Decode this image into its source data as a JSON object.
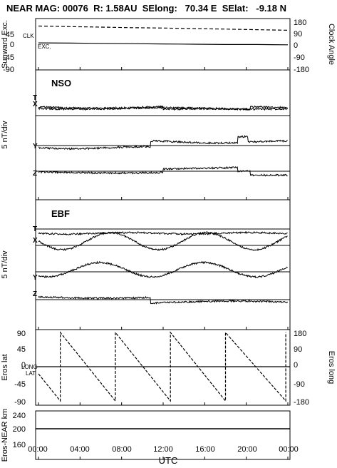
{
  "header": {
    "title": "NEAR MAG: 00076  R: 1.58AU  SElong:   70.34 E  SElat:   -9.18 N"
  },
  "xaxis": {
    "label": "UTC",
    "ticks": [
      "00:00",
      "04:00",
      "08:00",
      "12:00",
      "16:00",
      "20:00",
      "00:00"
    ]
  },
  "chart_data": [
    {
      "type": "line",
      "ylabel_left": "Sunward Exc.",
      "ylabel_right": "Clock Angle",
      "ylim": [
        -90,
        90
      ],
      "yticks_left": [
        "45",
        "0",
        "-45",
        "-90"
      ],
      "yticks_right": [
        "180",
        "90",
        "0",
        "-90",
        "-180"
      ],
      "annotations": [
        "CLK",
        "EXC."
      ],
      "x_hours": [
        0,
        3,
        6,
        9,
        12,
        15,
        18,
        21,
        24
      ],
      "series": [
        {
          "key": "clock",
          "style": "dashed",
          "values": [
            135,
            131,
            127,
            123,
            120,
            116,
            112,
            108,
            104
          ]
        },
        {
          "key": "exc",
          "style": "solid",
          "values": [
            5,
            4,
            3,
            2,
            1,
            0,
            -1,
            -1,
            -2
          ]
        }
      ]
    },
    {
      "type": "line",
      "panel_label": "NSO",
      "ylabel": "5 nT/div",
      "traces": [
        {
          "name": "T",
          "baseline": 0
        },
        {
          "name": "X",
          "baseline": 1
        },
        {
          "name": "Y",
          "baseline": 2
        },
        {
          "name": "Z",
          "baseline": 3
        }
      ]
    },
    {
      "type": "line",
      "panel_label": "EBF",
      "ylabel": "5 nT/div",
      "traces": [
        {
          "name": "T",
          "baseline": 0
        },
        {
          "name": "X",
          "baseline": 1
        },
        {
          "name": "Y",
          "baseline": 2
        },
        {
          "name": "Z",
          "baseline": 3
        }
      ]
    },
    {
      "type": "line",
      "ylabel_left": "Eros lat",
      "ylabel_right": "Eros long",
      "yticks_left": [
        "90",
        "45",
        "0",
        "-45",
        "-90"
      ],
      "yticks_right": [
        "180",
        "90",
        "0",
        "-90",
        "-180"
      ],
      "annotations": [
        "LONG",
        "LAT"
      ],
      "long_wraps_hours": [
        2.1,
        7.4,
        12.7,
        18.0,
        23.8
      ]
    },
    {
      "type": "line",
      "ylabel": "Eros-NEAR km",
      "yticks": [
        "240",
        "200",
        "160"
      ],
      "ylim": [
        120,
        260
      ],
      "series": [
        {
          "values": [
            205,
            205
          ]
        }
      ]
    }
  ]
}
